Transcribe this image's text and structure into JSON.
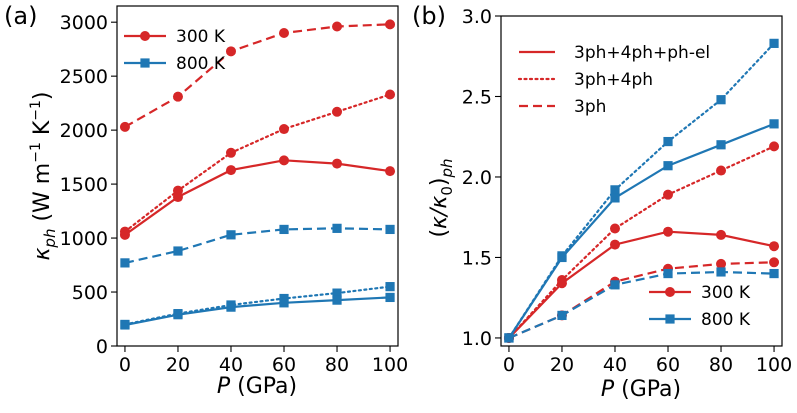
{
  "chart_data": [
    {
      "type": "line",
      "panel_label": "(a)",
      "title": "",
      "xlabel": "P (GPa)",
      "xlabel_var": "P",
      "xlabel_unit": " (GPa)",
      "ylabel": "κph (W m−1 K−1)",
      "ylabel_var": "κ",
      "ylabel_sub": "ph",
      "ylabel_unit_1": " (W m",
      "ylabel_exp1": "−1",
      "ylabel_unit_2": " K",
      "ylabel_exp2": "−1",
      "ylabel_close": ")",
      "xlim": [
        -3,
        103
      ],
      "ylim": [
        0,
        3150
      ],
      "xticks": [
        0,
        20,
        40,
        60,
        80,
        100
      ],
      "yticks": [
        0,
        500,
        1000,
        1500,
        2000,
        2500,
        3000
      ],
      "x": [
        0,
        20,
        40,
        60,
        80,
        100
      ],
      "legend": {
        "placement": "top-left",
        "entries": [
          {
            "label": "300 K",
            "color": "#d62728",
            "marker": "circle"
          },
          {
            "label": "800 K",
            "color": "#1f77b4",
            "marker": "square"
          }
        ]
      },
      "series": [
        {
          "name": "300 K 3ph",
          "temp": "300 K",
          "model": "3ph",
          "color": "#d62728",
          "dash": "dashed",
          "marker": "circle",
          "values": [
            2030,
            2310,
            2730,
            2900,
            2960,
            2980
          ]
        },
        {
          "name": "300 K 3ph+4ph",
          "temp": "300 K",
          "model": "3ph+4ph",
          "color": "#d62728",
          "dash": "dotted",
          "marker": "circle",
          "values": [
            1060,
            1440,
            1790,
            2010,
            2170,
            2330
          ]
        },
        {
          "name": "300 K 3ph+4ph+ph-el",
          "temp": "300 K",
          "model": "3ph+4ph+ph-el",
          "color": "#d62728",
          "dash": "solid",
          "marker": "circle",
          "values": [
            1030,
            1380,
            1630,
            1720,
            1690,
            1620
          ]
        },
        {
          "name": "800 K 3ph",
          "temp": "800 K",
          "model": "3ph",
          "color": "#1f77b4",
          "dash": "dashed",
          "marker": "square",
          "values": [
            770,
            880,
            1030,
            1080,
            1090,
            1080
          ]
        },
        {
          "name": "800 K 3ph+4ph",
          "temp": "800 K",
          "model": "3ph+4ph",
          "color": "#1f77b4",
          "dash": "dotted",
          "marker": "square",
          "values": [
            200,
            300,
            380,
            440,
            490,
            550
          ]
        },
        {
          "name": "800 K 3ph+4ph+ph-el",
          "temp": "800 K",
          "model": "3ph+4ph+ph-el",
          "color": "#1f77b4",
          "dash": "solid",
          "marker": "square",
          "values": [
            195,
            290,
            360,
            400,
            425,
            450
          ]
        }
      ]
    },
    {
      "type": "line",
      "panel_label": "(b)",
      "title": "",
      "xlabel": "P (GPa)",
      "xlabel_var": "P",
      "xlabel_unit": " (GPa)",
      "ylabel": "(κ/κ0)ph",
      "ylabel_open": "(",
      "ylabel_var": "κ/κ",
      "ylabel_sub0": "0",
      "ylabel_close": ")",
      "ylabel_sub": "ph",
      "xlim": [
        -3,
        103
      ],
      "ylim": [
        0.95,
        3.0
      ],
      "xticks": [
        0,
        20,
        40,
        60,
        80,
        100
      ],
      "yticks": [
        "1.0",
        "1.5",
        "2.0",
        "2.5",
        "3.0"
      ],
      "x": [
        0,
        20,
        40,
        60,
        80,
        100
      ],
      "legend_styles": {
        "placement": "top-left",
        "entries": [
          {
            "label": "3ph+4ph+ph-el",
            "color": "#d62728",
            "dash": "solid"
          },
          {
            "label": "3ph+4ph",
            "color": "#d62728",
            "dash": "dotted"
          },
          {
            "label": "3ph",
            "color": "#d62728",
            "dash": "dashed"
          }
        ]
      },
      "legend_temps": {
        "placement": "bottom-right",
        "entries": [
          {
            "label": "300 K",
            "color": "#d62728",
            "marker": "circle"
          },
          {
            "label": "800 K",
            "color": "#1f77b4",
            "marker": "square"
          }
        ]
      },
      "series": [
        {
          "name": "300 K 3ph",
          "temp": "300 K",
          "model": "3ph",
          "color": "#d62728",
          "dash": "dashed",
          "marker": "circle",
          "values": [
            1.0,
            1.14,
            1.35,
            1.43,
            1.46,
            1.47
          ]
        },
        {
          "name": "300 K 3ph+4ph",
          "temp": "300 K",
          "model": "3ph+4ph",
          "color": "#d62728",
          "dash": "dotted",
          "marker": "circle",
          "values": [
            1.0,
            1.36,
            1.68,
            1.89,
            2.04,
            2.19
          ]
        },
        {
          "name": "300 K 3ph+4ph+ph-el",
          "temp": "300 K",
          "model": "3ph+4ph+ph-el",
          "color": "#d62728",
          "dash": "solid",
          "marker": "circle",
          "values": [
            1.0,
            1.34,
            1.58,
            1.66,
            1.64,
            1.57
          ]
        },
        {
          "name": "800 K 3ph",
          "temp": "800 K",
          "model": "3ph",
          "color": "#1f77b4",
          "dash": "dashed",
          "marker": "square",
          "values": [
            1.0,
            1.14,
            1.33,
            1.4,
            1.41,
            1.4
          ]
        },
        {
          "name": "800 K 3ph+4ph",
          "temp": "800 K",
          "model": "3ph+4ph",
          "color": "#1f77b4",
          "dash": "dotted",
          "marker": "square",
          "values": [
            1.0,
            1.51,
            1.92,
            2.22,
            2.48,
            2.83
          ]
        },
        {
          "name": "800 K 3ph+4ph+ph-el",
          "temp": "800 K",
          "model": "3ph+4ph+ph-el",
          "color": "#1f77b4",
          "dash": "solid",
          "marker": "square",
          "values": [
            1.0,
            1.5,
            1.87,
            2.07,
            2.2,
            2.33
          ]
        }
      ]
    }
  ]
}
